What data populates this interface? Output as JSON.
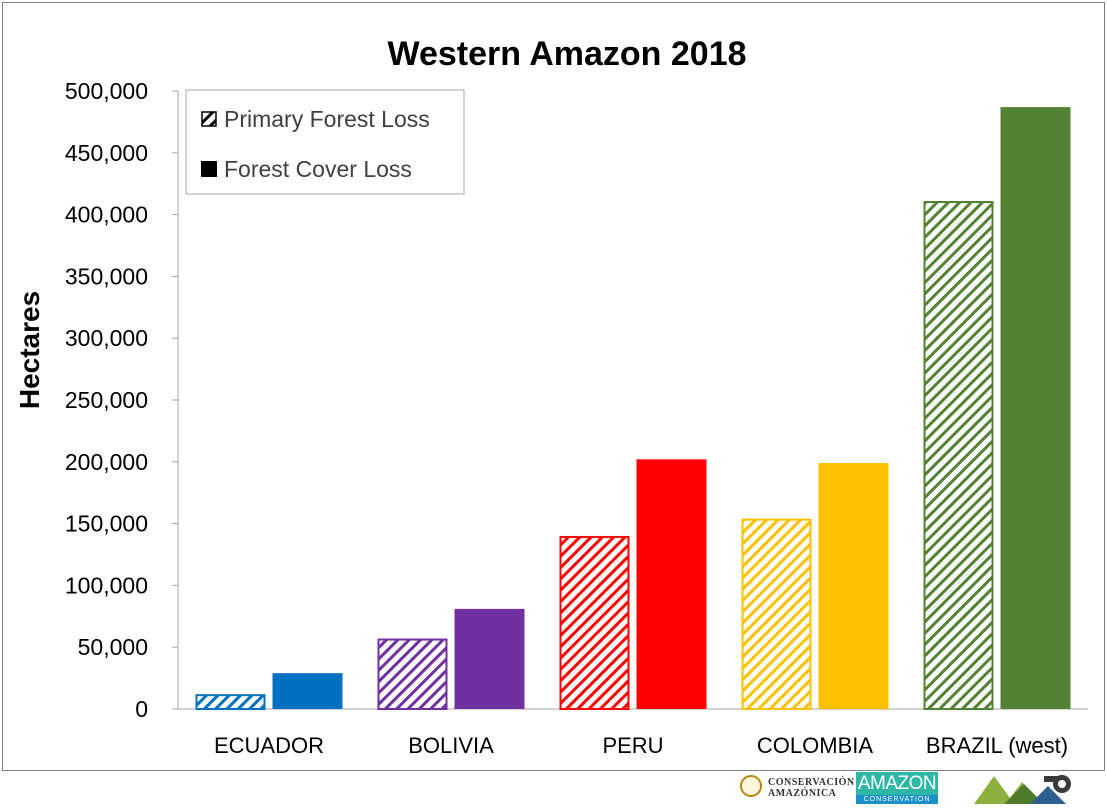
{
  "chart_data": {
    "type": "bar",
    "title": "Western Amazon 2018",
    "xlabel": "",
    "ylabel": "Hectares",
    "ylim": [
      0,
      500000
    ],
    "ytick_step": 50000,
    "yticks": [
      "0",
      "50,000",
      "100,000",
      "150,000",
      "200,000",
      "250,000",
      "300,000",
      "350,000",
      "400,000",
      "450,000",
      "500,000"
    ],
    "grid": false,
    "legend_position": "top-left",
    "categories": [
      "ECUADOR",
      "BOLIVIA",
      "PERU",
      "COLOMBIA",
      "BRAZIL (west)"
    ],
    "category_colors": [
      "#0070c0",
      "#7030a0",
      "#ff0000",
      "#ffc000",
      "#548235"
    ],
    "series": [
      {
        "name": "Primary Forest Loss",
        "style": "hatched",
        "values": [
          12000,
          57000,
          140000,
          154000,
          411000
        ]
      },
      {
        "name": "Forest Cover Loss",
        "style": "solid",
        "values": [
          29000,
          81000,
          202000,
          199000,
          487000
        ]
      }
    ]
  },
  "logos": {
    "acca_line1": "CONSERVACIÓN",
    "acca_line2": "AMAZÓNICA",
    "amazon_word": "AMAZON",
    "amazon_sub": "CONSERVATION"
  }
}
